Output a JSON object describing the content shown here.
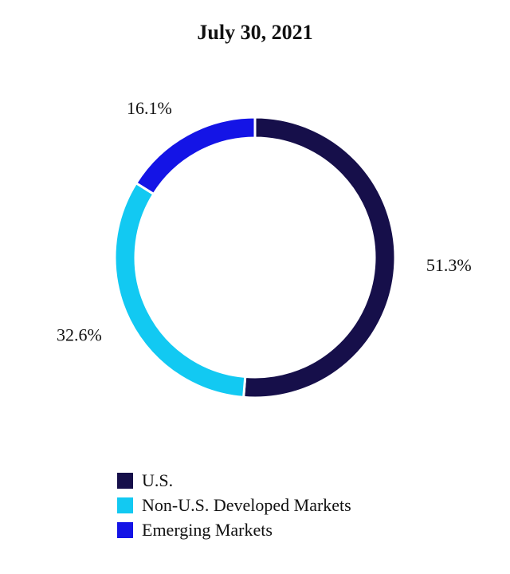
{
  "chart_data": {
    "type": "pie",
    "title": "July 30, 2021",
    "categories": [
      "U.S.",
      "Non-U.S. Developed Markets",
      "Emerging Markets"
    ],
    "values": [
      51.3,
      32.6,
      16.1
    ],
    "value_labels": [
      "51.3%",
      "32.6%",
      "16.1%"
    ],
    "colors": [
      "#160f4a",
      "#12c9f2",
      "#1414e6"
    ],
    "donut": true,
    "legend_position": "bottom-left"
  }
}
